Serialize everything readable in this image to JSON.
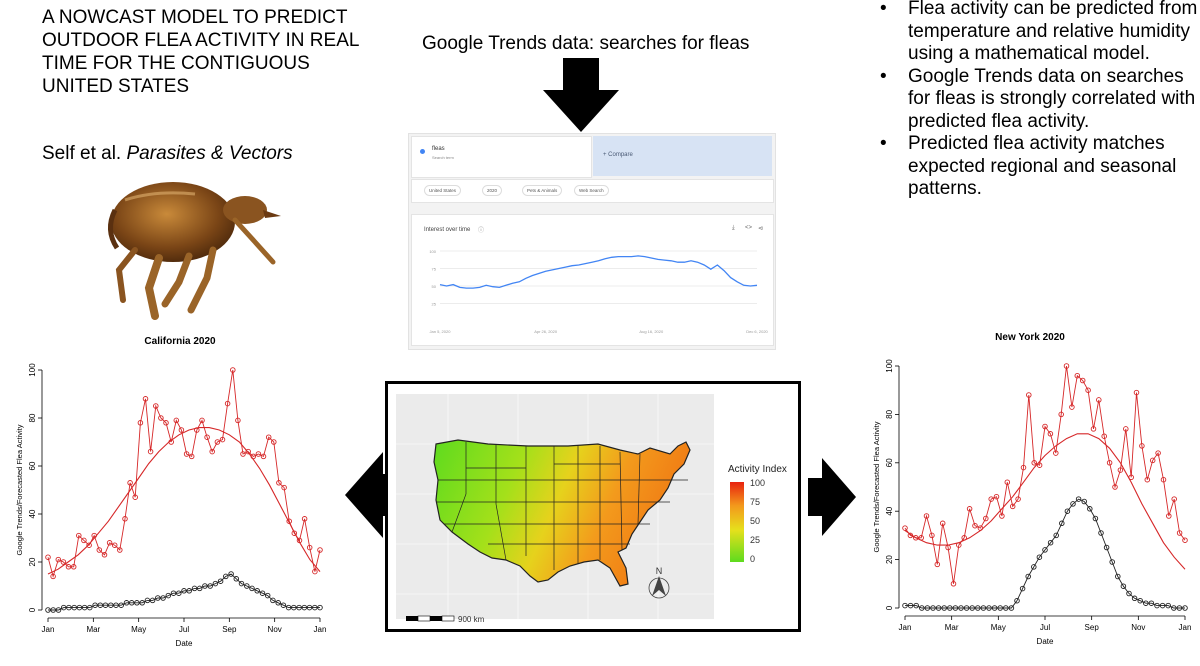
{
  "header": {
    "title_lines": [
      "A NOWCAST MODEL TO PREDICT",
      "OUTDOOR FLEA ACTIVITY IN REAL",
      "TIME FOR THE CONTIGUOUS",
      "UNITED STATES"
    ],
    "citation_authors": "Self et al.",
    "citation_journal": "Parasites & Vectors"
  },
  "trends_section": {
    "title": "Google Trends data: searches for fleas",
    "search_term": "fleas",
    "search_term_sub": "Search term",
    "compare_label": "+ Compare",
    "filters": [
      "United States",
      "2020",
      "Pets & Animals",
      "Web Search"
    ],
    "card_title": "Interest over time",
    "chart_data": {
      "type": "line",
      "title": "",
      "x_ticks": [
        "Jan 5, 2020",
        "Apr 26, 2020",
        "Aug 16, 2020",
        "Dec 6, 2020"
      ],
      "y_ticks": [
        100,
        75,
        50,
        25
      ],
      "ylim": [
        0,
        100
      ],
      "values": [
        52,
        50,
        52,
        48,
        47,
        47,
        48,
        51,
        49,
        48,
        51,
        54,
        56,
        61,
        65,
        68,
        71,
        73,
        75,
        77,
        79,
        80,
        82,
        84,
        86,
        89,
        91,
        92,
        92,
        92,
        93,
        92,
        90,
        88,
        87,
        86,
        84,
        84,
        86,
        84,
        80,
        74,
        80,
        72,
        62,
        56,
        51,
        50,
        51
      ],
      "grid": true
    }
  },
  "bullets": [
    "Flea activity can be predicted from temperature and relative humidity using a mathematical model.",
    "Google Trends data on searches for fleas is strongly correlated with predicted flea activity.",
    "Predicted flea activity matches expected regional and seasonal patterns."
  ],
  "map_section": {
    "legend_title": "Activity Index",
    "legend_ticks": [
      "100",
      "75",
      "50",
      "25",
      "0"
    ],
    "scale_label": "900 km",
    "north_label": "N"
  },
  "charts": {
    "chart_data": [
      {
        "id": "california",
        "type": "line",
        "title": "California 2020",
        "xlabel": "Date",
        "ylabel": "Google Trends/Forecasted Flea Activity",
        "ylim": [
          0,
          100
        ],
        "yticks": [
          0,
          20,
          40,
          60,
          80,
          100
        ],
        "xticks": [
          "Jan",
          "Mar",
          "May",
          "Jul",
          "Sep",
          "Nov",
          "Jan"
        ],
        "series": [
          {
            "name": "",
            "color": "#d62728",
            "style": "points-line",
            "values": [
              22,
              14,
              21,
              20,
              18,
              18,
              31,
              29,
              27,
              31,
              25,
              23,
              28,
              27,
              25,
              38,
              53,
              47,
              78,
              88,
              66,
              85,
              80,
              78,
              70,
              79,
              75,
              65,
              64,
              75,
              79,
              72,
              66,
              70,
              71,
              86,
              100,
              79,
              65,
              66,
              64,
              65,
              64,
              72,
              70,
              53,
              51,
              37,
              32,
              29,
              38,
              26,
              16,
              25
            ]
          },
          {
            "name": "",
            "color": "#d62728",
            "style": "smooth-line",
            "values": [
              15,
              17,
              20,
              23,
              27,
              32,
              37,
              43,
              49,
              55,
              61,
              66,
              70,
              73,
              75,
              76,
              76,
              75,
              73,
              70,
              65,
              59,
              52,
              44,
              36,
              28,
              21,
              16
            ]
          },
          {
            "name": "",
            "color": "#222222",
            "style": "points-line",
            "values": [
              0,
              0,
              0,
              1,
              1,
              1,
              1,
              1,
              1,
              2,
              2,
              2,
              2,
              2,
              2,
              3,
              3,
              3,
              3,
              4,
              4,
              5,
              5,
              6,
              7,
              7,
              8,
              8,
              9,
              9,
              10,
              10,
              11,
              12,
              14,
              15,
              13,
              11,
              10,
              9,
              8,
              7,
              6,
              4,
              3,
              2,
              1,
              1,
              1,
              1,
              1,
              1,
              1
            ]
          }
        ]
      },
      {
        "id": "newyork",
        "type": "line",
        "title": "New York 2020",
        "xlabel": "Date",
        "ylabel": "Google Trends/Forecasted Flea Activity",
        "ylim": [
          0,
          100
        ],
        "yticks": [
          0,
          20,
          40,
          60,
          80,
          100
        ],
        "xticks": [
          "Jan",
          "Mar",
          "May",
          "Jul",
          "Sep",
          "Nov",
          "Jan"
        ],
        "series": [
          {
            "name": "",
            "color": "#d62728",
            "style": "points-line",
            "values": [
              33,
              30,
              29,
              29,
              38,
              30,
              18,
              35,
              25,
              10,
              26,
              29,
              41,
              34,
              33,
              37,
              45,
              46,
              38,
              52,
              42,
              45,
              58,
              88,
              60,
              59,
              75,
              72,
              64,
              80,
              100,
              83,
              96,
              94,
              90,
              74,
              86,
              71,
              60,
              50,
              57,
              74,
              54,
              89,
              67,
              53,
              61,
              64,
              53,
              38,
              45,
              31,
              28
            ]
          },
          {
            "name": "",
            "color": "#d62728",
            "style": "smooth-line",
            "values": [
              32,
              29,
              27,
              26,
              26,
              27,
              29,
              32,
              36,
              41,
              46,
              52,
              58,
              63,
              67,
              70,
              72,
              72,
              70,
              66,
              60,
              52,
              43,
              35,
              27,
              21,
              16
            ]
          },
          {
            "name": "",
            "color": "#222222",
            "style": "points-line",
            "values": [
              1,
              1,
              1,
              0,
              0,
              0,
              0,
              0,
              0,
              0,
              0,
              0,
              0,
              0,
              0,
              0,
              0,
              0,
              0,
              0,
              3,
              8,
              13,
              17,
              21,
              24,
              27,
              30,
              35,
              40,
              43,
              45,
              44,
              41,
              37,
              31,
              25,
              19,
              13,
              9,
              6,
              4,
              3,
              2,
              2,
              1,
              1,
              1,
              0,
              0,
              0
            ]
          }
        ]
      }
    ]
  }
}
